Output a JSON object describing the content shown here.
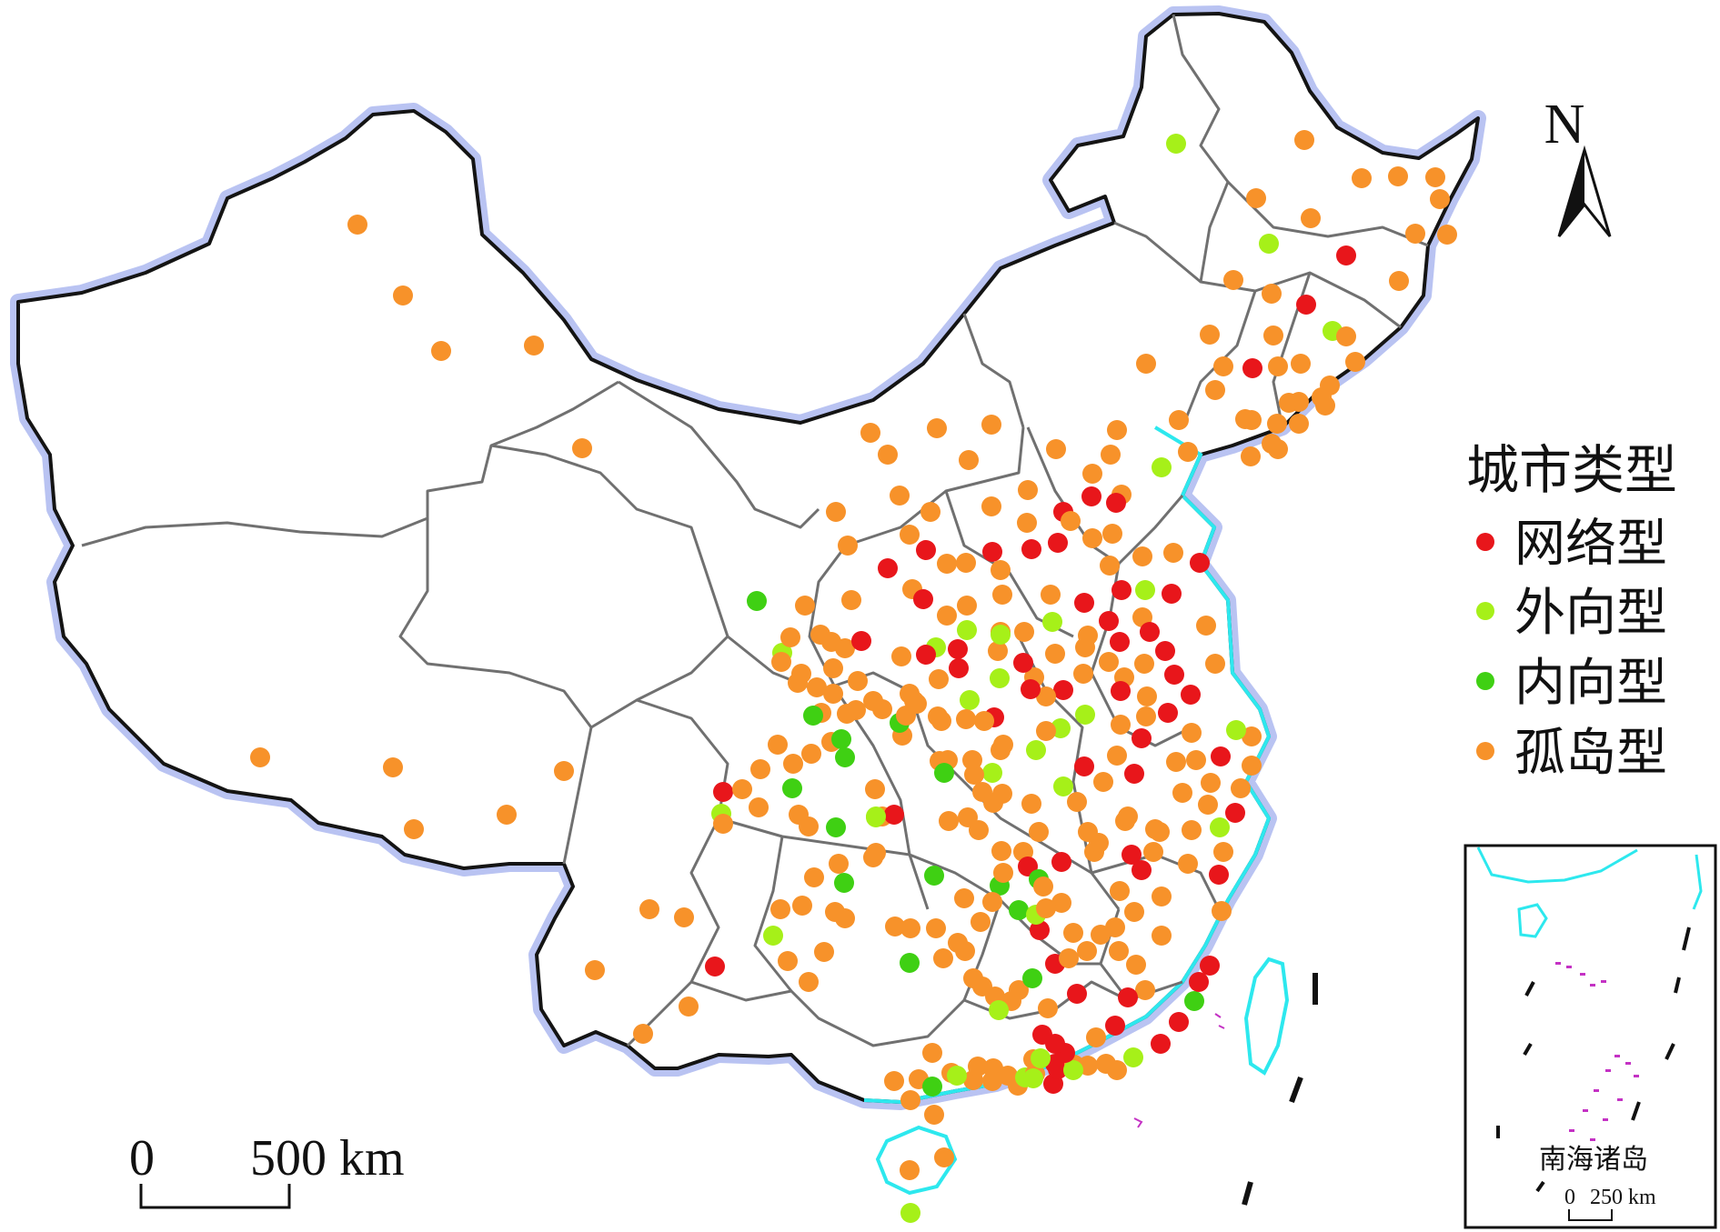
{
  "legend": {
    "title": "城市类型",
    "items": [
      {
        "label": "网络型",
        "color": "#e8161b"
      },
      {
        "label": "外向型",
        "color": "#a6f019"
      },
      {
        "label": "内向型",
        "color": "#3fd013"
      },
      {
        "label": "孤岛型",
        "color": "#f7922a"
      }
    ]
  },
  "north_arrow": {
    "label": "N"
  },
  "scale_bar": {
    "start": "0",
    "end": "500 km"
  },
  "inset": {
    "caption": "南海诸岛",
    "scale_start": "0",
    "scale_end": "250 km"
  },
  "colors": {
    "boundary_glow": "#b9c3f2",
    "coast": "#2de8ee",
    "province_line": "#707070",
    "islands": "#c432c4"
  }
}
